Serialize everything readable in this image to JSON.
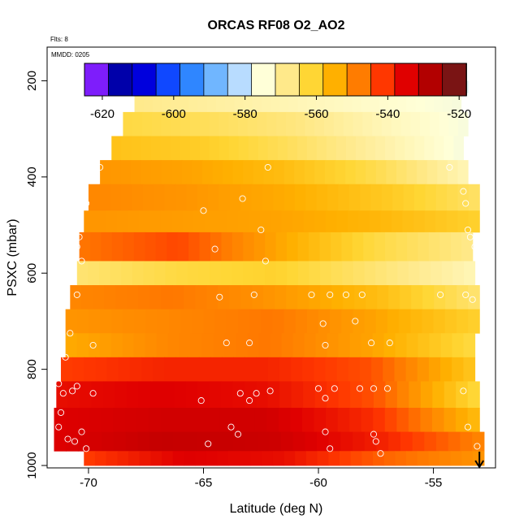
{
  "chart_data": {
    "type": "heatmap",
    "title": "ORCAS RF08 O2_AO2",
    "flights_label": "Flts: 8",
    "date_label": "MMDD: 0205",
    "xlabel": "Latitude (deg N)",
    "ylabel": "PSXC (mbar)",
    "xlim": [
      -71.8,
      -52.3
    ],
    "ylim": [
      1005,
      130
    ],
    "x_ticks": [
      -70,
      -65,
      -60,
      -55
    ],
    "y_ticks": [
      200,
      400,
      600,
      800,
      1000
    ],
    "colorbar": {
      "range": [
        -625,
        -518
      ],
      "ticks": [
        -620,
        -600,
        -580,
        -560,
        -540,
        -520
      ],
      "colors": [
        "#7e1dfb",
        "#0000aa",
        "#0000dd",
        "#1048ff",
        "#2f86ff",
        "#70b6ff",
        "#b8dcff",
        "#ffffd8",
        "#ffe98a",
        "#ffd634",
        "#ffb000",
        "#ff7c00",
        "#ff3700",
        "#e00000",
        "#b20000",
        "#7a1414"
      ]
    },
    "bands": [
      {
        "p": [
          180,
          200
        ],
        "lat": [
          -67.8,
          -53.8
        ],
        "values": [
          -578,
          -576,
          -575,
          -578,
          -584
        ]
      },
      {
        "p": [
          200,
          225
        ],
        "lat": [
          -67.5,
          -53.5
        ],
        "values": [
          -572,
          -573,
          -574,
          -576,
          -579
        ]
      },
      {
        "p": [
          225,
          265
        ],
        "lat": [
          -68.0,
          -53.8
        ],
        "values": [
          -568,
          -570,
          -572,
          -574,
          -576
        ]
      },
      {
        "p": [
          265,
          315
        ],
        "lat": [
          -68.5,
          -53.5
        ],
        "values": [
          -562,
          -564,
          -567,
          -572,
          -576
        ]
      },
      {
        "p": [
          315,
          365
        ],
        "lat": [
          -69.0,
          -53.7
        ],
        "values": [
          -557,
          -559,
          -564,
          -570,
          -576
        ]
      },
      {
        "p": [
          365,
          415
        ],
        "lat": [
          -69.5,
          -53.5
        ],
        "values": [
          -550,
          -552,
          -556,
          -563,
          -572
        ]
      },
      {
        "p": [
          415,
          470
        ],
        "lat": [
          -70.0,
          -53.0
        ],
        "values": [
          -548,
          -550,
          -553,
          -558,
          -565
        ]
      },
      {
        "p": [
          470,
          515
        ],
        "lat": [
          -70.2,
          -53.0
        ],
        "values": [
          -550,
          -551,
          -552,
          -555,
          -560
        ]
      },
      {
        "p": [
          515,
          575
        ],
        "lat": [
          -70.4,
          -53.3
        ],
        "values": [
          -546,
          -541,
          -552,
          -562,
          -568
        ]
      },
      {
        "p": [
          575,
          625
        ],
        "lat": [
          -70.5,
          -53.2
        ],
        "values": [
          -566,
          -562,
          -560,
          -566,
          -572
        ]
      },
      {
        "p": [
          625,
          675
        ],
        "lat": [
          -70.8,
          -53.0
        ],
        "values": [
          -548,
          -546,
          -550,
          -556,
          -566
        ]
      },
      {
        "p": [
          675,
          725
        ],
        "lat": [
          -71.0,
          -53.0
        ],
        "values": [
          -550,
          -548,
          -546,
          -552,
          -560
        ]
      },
      {
        "p": [
          725,
          775
        ],
        "lat": [
          -71.0,
          -53.2
        ],
        "values": [
          -553,
          -548,
          -546,
          -552,
          -562
        ]
      },
      {
        "p": [
          775,
          825
        ],
        "lat": [
          -71.2,
          -53.2
        ],
        "values": [
          -540,
          -537,
          -537,
          -542,
          -558
        ]
      },
      {
        "p": [
          825,
          880
        ],
        "lat": [
          -71.4,
          -53.0
        ],
        "values": [
          -534,
          -532,
          -534,
          -542,
          -562
        ]
      },
      {
        "p": [
          880,
          930
        ],
        "lat": [
          -71.5,
          -53.0
        ],
        "values": [
          -532,
          -530,
          -530,
          -538,
          -556
        ]
      },
      {
        "p": [
          930,
          970
        ],
        "lat": [
          -71.5,
          -52.8
        ],
        "values": [
          -532,
          -528,
          -529,
          -536,
          -548
        ]
      },
      {
        "p": [
          970,
          1000
        ],
        "lat": [
          -70.2,
          -52.8
        ],
        "values": [
          -540,
          -532,
          -534,
          -544,
          -550
        ]
      }
    ],
    "points": [
      [
        -67.8,
        190
      ],
      [
        -67.4,
        190
      ],
      [
        -67.0,
        190
      ],
      [
        -66.5,
        190
      ],
      [
        -64.5,
        190
      ],
      [
        -64.0,
        190
      ],
      [
        -63.5,
        190
      ],
      [
        -63.0,
        190
      ],
      [
        -62.5,
        190
      ],
      [
        -60.7,
        190
      ],
      [
        -59.8,
        190
      ],
      [
        -59.3,
        190
      ],
      [
        -58.8,
        190
      ],
      [
        -58.3,
        190
      ],
      [
        -57.8,
        190
      ],
      [
        -56.3,
        190
      ],
      [
        -55.8,
        190
      ],
      [
        -55.3,
        190
      ],
      [
        -54.5,
        190
      ],
      [
        -69.5,
        380
      ],
      [
        -69.7,
        405
      ],
      [
        -62.2,
        380
      ],
      [
        -54.3,
        380
      ],
      [
        -70.1,
        455
      ],
      [
        -65.0,
        470
      ],
      [
        -63.3,
        445
      ],
      [
        -53.7,
        430
      ],
      [
        -53.6,
        455
      ],
      [
        -70.4,
        525
      ],
      [
        -70.5,
        545
      ],
      [
        -64.5,
        550
      ],
      [
        -62.5,
        510
      ],
      [
        -53.5,
        510
      ],
      [
        -53.4,
        525
      ],
      [
        -53.2,
        545
      ],
      [
        -70.3,
        575
      ],
      [
        -62.3,
        575
      ],
      [
        -53.0,
        570
      ],
      [
        -70.5,
        645
      ],
      [
        -64.3,
        650
      ],
      [
        -62.8,
        645
      ],
      [
        -60.3,
        645
      ],
      [
        -59.5,
        645
      ],
      [
        -58.8,
        645
      ],
      [
        -58.1,
        645
      ],
      [
        -54.7,
        645
      ],
      [
        -53.6,
        645
      ],
      [
        -53.3,
        655
      ],
      [
        -70.8,
        725
      ],
      [
        -69.8,
        750
      ],
      [
        -64.0,
        745
      ],
      [
        -63.0,
        745
      ],
      [
        -59.8,
        705
      ],
      [
        -59.7,
        750
      ],
      [
        -58.4,
        700
      ],
      [
        -57.7,
        745
      ],
      [
        -56.9,
        745
      ],
      [
        -71.0,
        775
      ],
      [
        -71.3,
        830
      ],
      [
        -71.1,
        850
      ],
      [
        -70.7,
        845
      ],
      [
        -70.5,
        835
      ],
      [
        -69.8,
        850
      ],
      [
        -62.1,
        845
      ],
      [
        -60.0,
        840
      ],
      [
        -59.7,
        860
      ],
      [
        -59.3,
        840
      ],
      [
        -58.2,
        840
      ],
      [
        -57.6,
        840
      ],
      [
        -57.0,
        840
      ],
      [
        -63.4,
        850
      ],
      [
        -62.7,
        850
      ],
      [
        -53.7,
        845
      ],
      [
        -71.2,
        890
      ],
      [
        -71.3,
        920
      ],
      [
        -70.9,
        945
      ],
      [
        -70.6,
        950
      ],
      [
        -70.3,
        930
      ],
      [
        -70.1,
        965
      ],
      [
        -65.1,
        865
      ],
      [
        -63.0,
        865
      ],
      [
        -64.8,
        955
      ],
      [
        -63.8,
        920
      ],
      [
        -63.5,
        935
      ],
      [
        -59.7,
        930
      ],
      [
        -59.5,
        965
      ],
      [
        -57.6,
        935
      ],
      [
        -57.5,
        950
      ],
      [
        -57.3,
        975
      ],
      [
        -53.5,
        920
      ],
      [
        -53.1,
        960
      ]
    ],
    "arrow_at": [
      -53.0,
      1005
    ]
  }
}
